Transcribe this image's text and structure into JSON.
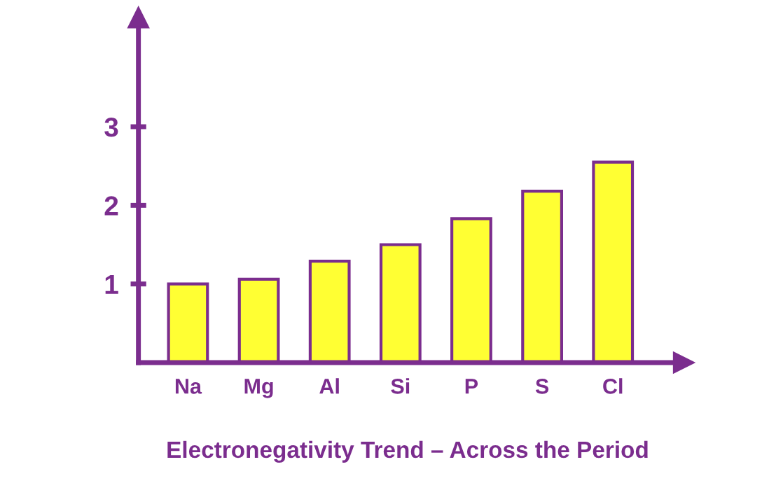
{
  "chart_data": {
    "type": "bar",
    "xlabel": "Electronegativity Trend – Across the Period",
    "categories": [
      "Na",
      "Mg",
      "Al",
      "Si",
      "P",
      "S",
      "Cl"
    ],
    "values": [
      1.0,
      1.06,
      1.29,
      1.5,
      1.83,
      2.18,
      2.55
    ],
    "color": "#ffff33",
    "ylim": [
      0,
      4.3
    ],
    "yticks": [
      1,
      2,
      3
    ],
    "grid": false,
    "legend": false
  }
}
